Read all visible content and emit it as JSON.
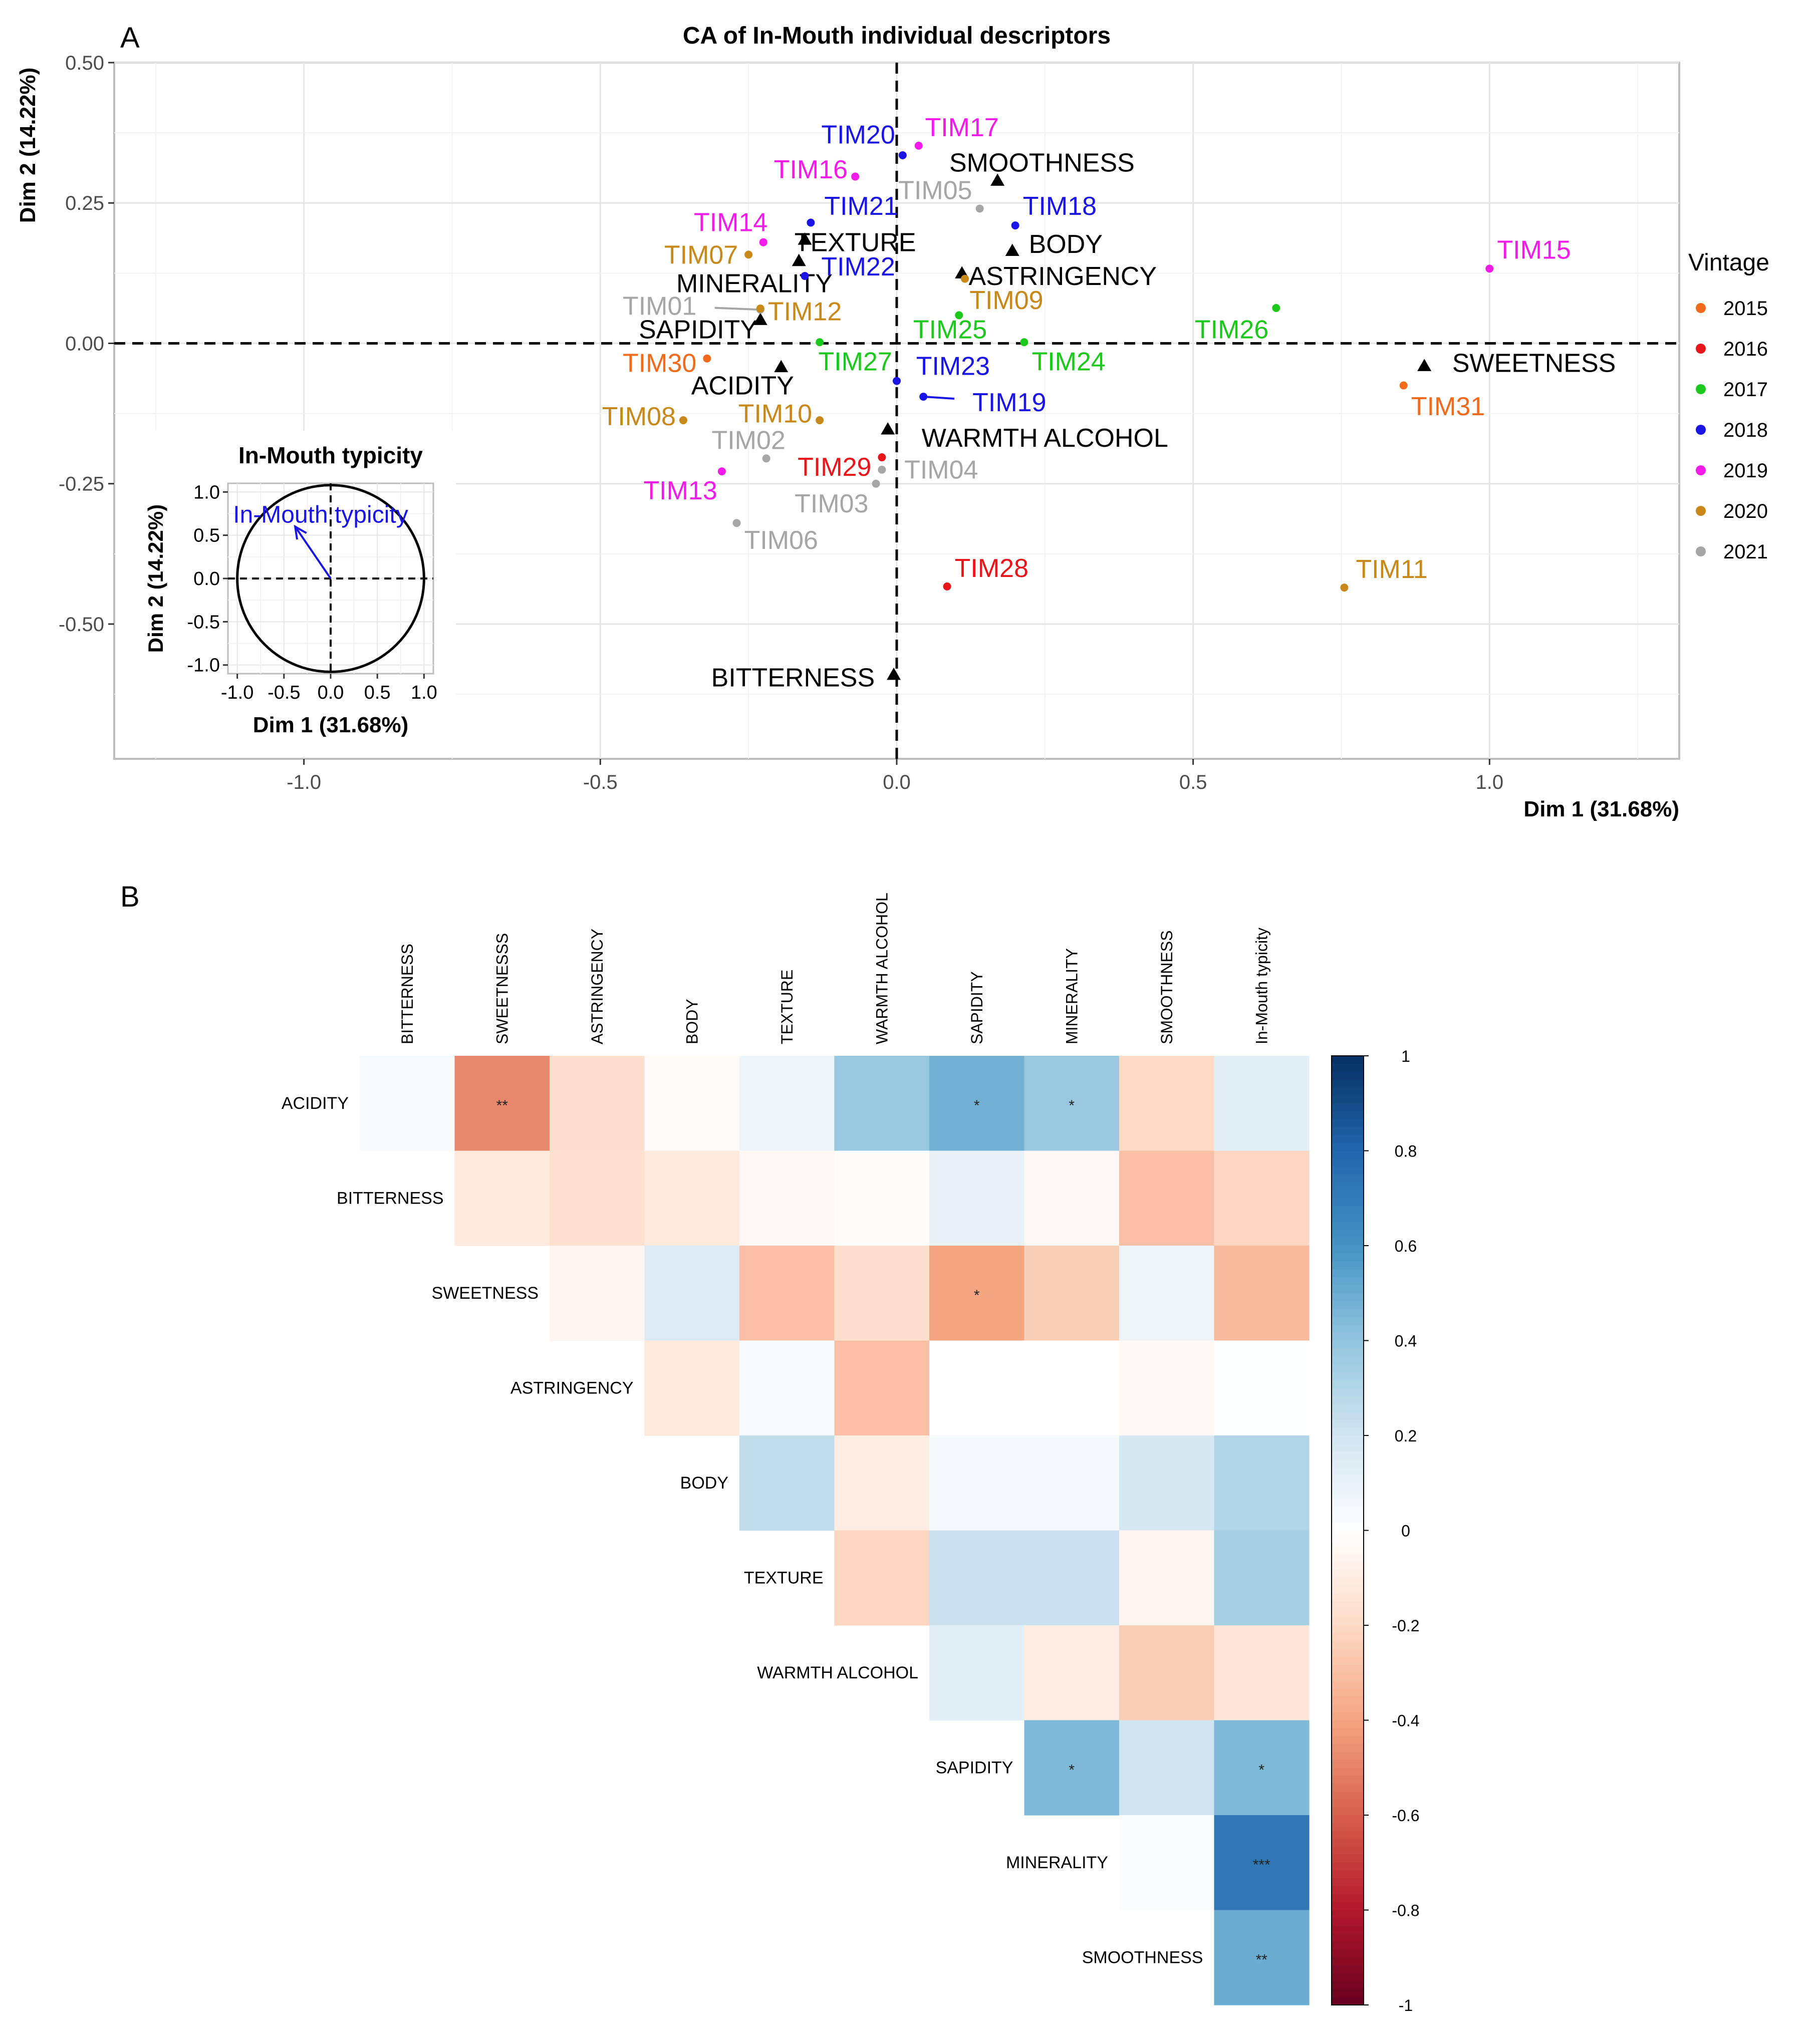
{
  "panel_a": {
    "letter": "A",
    "title": "CA of In-Mouth individual descriptors",
    "xlabel": "Dim 1 (31.68%)",
    "ylabel": "Dim 2 (14.22%)",
    "legend_title": "Vintage"
  },
  "panel_b": {
    "letter": "B"
  },
  "inset": {
    "title": "In-Mouth typicity",
    "arrow_label": "In-Mouth typicity",
    "xlabel": "Dim 1 (31.68%)",
    "ylabel": "Dim 2 (14.22%)"
  },
  "chart_data": [
    {
      "type": "scatter",
      "title": "CA of In-Mouth individual descriptors",
      "xlabel": "Dim 1 (31.68%)",
      "ylabel": "Dim 2 (14.22%)",
      "xlim": [
        -1.32,
        1.32
      ],
      "ylim": [
        -0.74,
        0.5
      ],
      "xticks": [
        -1.0,
        -0.5,
        0.0,
        0.5,
        1.0
      ],
      "xtick_labels": [
        "-1.0",
        "-0.5",
        "0.0",
        "0.5",
        "1.0"
      ],
      "yticks": [
        -0.5,
        -0.25,
        0.0,
        0.25,
        0.5
      ],
      "ytick_labels": [
        "-0.50",
        "-0.25",
        "0.00",
        "0.25",
        "0.50"
      ],
      "legend": {
        "title": "Vintage",
        "entries": [
          {
            "label": "2015",
            "color": "#F26A1B"
          },
          {
            "label": "2016",
            "color": "#E8161B"
          },
          {
            "label": "2017",
            "color": "#1DC81D"
          },
          {
            "label": "2018",
            "color": "#1A14E6"
          },
          {
            "label": "2019",
            "color": "#F21BEA"
          },
          {
            "label": "2020",
            "color": "#C8881A"
          },
          {
            "label": "2021",
            "color": "#A6A6A6"
          }
        ]
      },
      "samples": [
        {
          "label": "TIM01",
          "vintage": "2021",
          "x": -0.23,
          "y": 0.06,
          "lx": -0.4,
          "ly": 0.067
        },
        {
          "label": "TIM02",
          "vintage": "2021",
          "x": -0.22,
          "y": -0.205,
          "lx": -0.25,
          "ly": -0.172
        },
        {
          "label": "TIM03",
          "vintage": "2021",
          "x": -0.035,
          "y": -0.25,
          "lx": -0.11,
          "ly": -0.285
        },
        {
          "label": "TIM04",
          "vintage": "2021",
          "x": -0.025,
          "y": -0.225,
          "lx": 0.075,
          "ly": -0.225
        },
        {
          "label": "TIM05",
          "vintage": "2021",
          "x": 0.14,
          "y": 0.24,
          "lx": 0.065,
          "ly": 0.273
        },
        {
          "label": "TIM06",
          "vintage": "2021",
          "x": -0.27,
          "y": -0.32,
          "lx": -0.195,
          "ly": -0.35
        },
        {
          "label": "TIM07",
          "vintage": "2020",
          "x": -0.25,
          "y": 0.158,
          "lx": -0.33,
          "ly": 0.158
        },
        {
          "label": "TIM08",
          "vintage": "2020",
          "x": -0.36,
          "y": -0.137,
          "lx": -0.435,
          "ly": -0.13
        },
        {
          "label": "TIM09",
          "vintage": "2020",
          "x": 0.115,
          "y": 0.115,
          "lx": 0.185,
          "ly": 0.077
        },
        {
          "label": "TIM10",
          "vintage": "2020",
          "x": -0.13,
          "y": -0.137,
          "lx": -0.205,
          "ly": -0.125
        },
        {
          "label": "TIM11",
          "vintage": "2020",
          "x": 0.755,
          "y": -0.435,
          "lx": 0.835,
          "ly": -0.402
        },
        {
          "label": "TIM12",
          "vintage": "2020",
          "x": -0.23,
          "y": 0.062,
          "lx": -0.155,
          "ly": 0.057
        },
        {
          "label": "TIM13",
          "vintage": "2019",
          "x": -0.295,
          "y": -0.228,
          "lx": -0.365,
          "ly": -0.262
        },
        {
          "label": "TIM14",
          "vintage": "2019",
          "x": -0.225,
          "y": 0.18,
          "lx": -0.28,
          "ly": 0.216
        },
        {
          "label": "TIM15",
          "vintage": "2019",
          "x": 1.0,
          "y": 0.133,
          "lx": 1.075,
          "ly": 0.167
        },
        {
          "label": "TIM16",
          "vintage": "2019",
          "x": -0.07,
          "y": 0.297,
          "lx": -0.145,
          "ly": 0.31
        },
        {
          "label": "TIM17",
          "vintage": "2019",
          "x": 0.037,
          "y": 0.352,
          "lx": 0.11,
          "ly": 0.385
        },
        {
          "label": "TIM18",
          "vintage": "2018",
          "x": 0.2,
          "y": 0.21,
          "lx": 0.275,
          "ly": 0.245
        },
        {
          "label": "TIM19",
          "vintage": "2018",
          "x": 0.045,
          "y": -0.095,
          "lx": 0.19,
          "ly": -0.105
        },
        {
          "label": "TIM20",
          "vintage": "2018",
          "x": 0.01,
          "y": 0.335,
          "lx": -0.065,
          "ly": 0.372
        },
        {
          "label": "TIM21",
          "vintage": "2018",
          "x": -0.145,
          "y": 0.215,
          "lx": -0.06,
          "ly": 0.245
        },
        {
          "label": "TIM22",
          "vintage": "2018",
          "x": -0.155,
          "y": 0.12,
          "lx": -0.065,
          "ly": 0.137
        },
        {
          "label": "TIM23",
          "vintage": "2018",
          "x": 0.0,
          "y": -0.067,
          "lx": 0.095,
          "ly": -0.04
        },
        {
          "label": "TIM24",
          "vintage": "2017",
          "x": 0.215,
          "y": 0.002,
          "lx": 0.29,
          "ly": -0.032
        },
        {
          "label": "TIM25",
          "vintage": "2017",
          "x": 0.105,
          "y": 0.05,
          "lx": 0.09,
          "ly": 0.025
        },
        {
          "label": "TIM26",
          "vintage": "2017",
          "x": 0.64,
          "y": 0.063,
          "lx": 0.565,
          "ly": 0.025
        },
        {
          "label": "TIM27",
          "vintage": "2017",
          "x": -0.13,
          "y": 0.002,
          "lx": -0.07,
          "ly": -0.032
        },
        {
          "label": "TIM28",
          "vintage": "2016",
          "x": 0.085,
          "y": -0.433,
          "lx": 0.16,
          "ly": -0.4
        },
        {
          "label": "TIM29",
          "vintage": "2016",
          "x": -0.025,
          "y": -0.203,
          "lx": -0.105,
          "ly": -0.22
        },
        {
          "label": "TIM30",
          "vintage": "2015",
          "x": -0.32,
          "y": -0.027,
          "lx": -0.4,
          "ly": -0.035
        },
        {
          "label": "TIM31",
          "vintage": "2015",
          "x": 0.855,
          "y": -0.075,
          "lx": 0.93,
          "ly": -0.112
        }
      ],
      "descriptors": [
        {
          "label": "SMOOTHNESS",
          "x": 0.17,
          "y": 0.29,
          "lx": 0.245,
          "ly": 0.322
        },
        {
          "label": "TEXTURE",
          "x": -0.155,
          "y": 0.185,
          "lx": -0.07,
          "ly": 0.18
        },
        {
          "label": "BODY",
          "x": 0.195,
          "y": 0.165,
          "lx": 0.285,
          "ly": 0.177
        },
        {
          "label": "ASTRINGENCY",
          "x": 0.11,
          "y": 0.125,
          "lx": 0.28,
          "ly": 0.12
        },
        {
          "label": "MINERALITY",
          "x": -0.165,
          "y": 0.147,
          "lx": -0.24,
          "ly": 0.107
        },
        {
          "label": "SAPIDITY",
          "x": -0.23,
          "y": 0.042,
          "lx": -0.335,
          "ly": 0.025
        },
        {
          "label": "SWEETNESS",
          "x": 0.89,
          "y": -0.04,
          "lx": 1.075,
          "ly": -0.035
        },
        {
          "label": "ACIDITY",
          "x": -0.195,
          "y": -0.042,
          "lx": -0.26,
          "ly": -0.075
        },
        {
          "label": "WARMTH ALCOHOL",
          "x": -0.015,
          "y": -0.153,
          "lx": 0.25,
          "ly": -0.168
        },
        {
          "label": "BITTERNESS",
          "x": -0.005,
          "y": -0.59,
          "lx": -0.175,
          "ly": -0.595
        }
      ]
    },
    {
      "type": "scatter",
      "title": "In-Mouth typicity",
      "xlabel": "Dim 1 (31.68%)",
      "ylabel": "Dim 2 (14.22%)",
      "xlim": [
        -1.1,
        1.1
      ],
      "ylim": [
        -1.1,
        1.1
      ],
      "xticks": [
        -1.0,
        -0.5,
        0.0,
        0.5,
        1.0
      ],
      "xtick_labels": [
        "-1.0",
        "-0.5",
        "0.0",
        "0.5",
        "1.0"
      ],
      "yticks": [
        -1.0,
        -0.5,
        0.0,
        0.5,
        1.0
      ],
      "ytick_labels": [
        "-1.0",
        "-0.5",
        "0.0",
        "0.5",
        "1.0"
      ],
      "arrow": {
        "label": "In-Mouth typicity",
        "x": -0.38,
        "y": 0.6,
        "color": "#1A14E6"
      },
      "unit_circle": true
    },
    {
      "type": "heatmap",
      "title": "",
      "columns": [
        "BITTERNESS",
        "SWEETNESSS",
        "ASTRINGENCY",
        "BODY",
        "TEXTURE",
        "WARMTH ALCOHOL",
        "SAPIDITY",
        "MINERALITY",
        "SMOOTHNESS",
        "In-Mouth typicity"
      ],
      "rows": [
        "ACIDITY",
        "BITTERNESS",
        "SWEETNESS",
        "ASTRINGENCY",
        "BODY",
        "TEXTURE",
        "WARMTH ALCOHOL",
        "SAPIDITY",
        "MINERALITY",
        "SMOOTHNESS"
      ],
      "values": [
        [
          0.03,
          -0.48,
          -0.18,
          -0.02,
          0.08,
          0.38,
          0.48,
          0.38,
          -0.2,
          0.12
        ],
        [
          null,
          -0.12,
          -0.17,
          -0.12,
          -0.04,
          -0.01,
          0.1,
          -0.04,
          -0.3,
          -0.22
        ],
        [
          null,
          null,
          -0.05,
          0.15,
          -0.3,
          -0.18,
          -0.4,
          -0.24,
          0.08,
          -0.32
        ],
        [
          null,
          null,
          null,
          -0.12,
          0.04,
          -0.3,
          0.0,
          0.0,
          -0.04,
          0.01
        ],
        [
          null,
          null,
          null,
          null,
          0.25,
          -0.1,
          0.05,
          0.05,
          0.18,
          0.3
        ],
        [
          null,
          null,
          null,
          null,
          null,
          -0.22,
          0.22,
          0.22,
          -0.05,
          0.33
        ],
        [
          null,
          null,
          null,
          null,
          null,
          null,
          0.12,
          -0.1,
          -0.25,
          -0.14
        ],
        [
          null,
          null,
          null,
          null,
          null,
          null,
          null,
          0.45,
          0.2,
          0.45
        ],
        [
          null,
          null,
          null,
          null,
          null,
          null,
          null,
          null,
          0.02,
          0.72
        ],
        [
          null,
          null,
          null,
          null,
          null,
          null,
          null,
          null,
          null,
          0.5
        ]
      ],
      "significance": [
        [
          "",
          "**",
          "",
          "",
          "",
          "",
          "*",
          "*",
          "",
          ""
        ],
        [
          "",
          "",
          "",
          "",
          "",
          "",
          "",
          "",
          "",
          ""
        ],
        [
          "",
          "",
          "",
          "",
          "",
          "",
          "*",
          "",
          "",
          ""
        ],
        [
          "",
          "",
          "",
          "",
          "",
          "",
          "",
          "",
          "",
          ""
        ],
        [
          "",
          "",
          "",
          "",
          "",
          "",
          "",
          "",
          "",
          ""
        ],
        [
          "",
          "",
          "",
          "",
          "",
          "",
          "",
          "",
          "",
          ""
        ],
        [
          "",
          "",
          "",
          "",
          "",
          "",
          "",
          "",
          "",
          ""
        ],
        [
          "",
          "",
          "",
          "",
          "",
          "",
          "",
          "*",
          "",
          "*"
        ],
        [
          "",
          "",
          "",
          "",
          "",
          "",
          "",
          "",
          "",
          "***"
        ],
        [
          "",
          "",
          "",
          "",
          "",
          "",
          "",
          "",
          "",
          "**"
        ]
      ],
      "colorbar": {
        "min": -1,
        "max": 1,
        "ticks": [
          1,
          0.8,
          0.6,
          0.4,
          0.2,
          0,
          -0.2,
          -0.4,
          -0.6,
          -0.8,
          -1
        ],
        "tick_labels": [
          "1",
          "0.8",
          "0.6",
          "0.4",
          "0.2",
          "0",
          "-0.2",
          "-0.4",
          "-0.6",
          "-0.8",
          "-1"
        ]
      }
    }
  ]
}
